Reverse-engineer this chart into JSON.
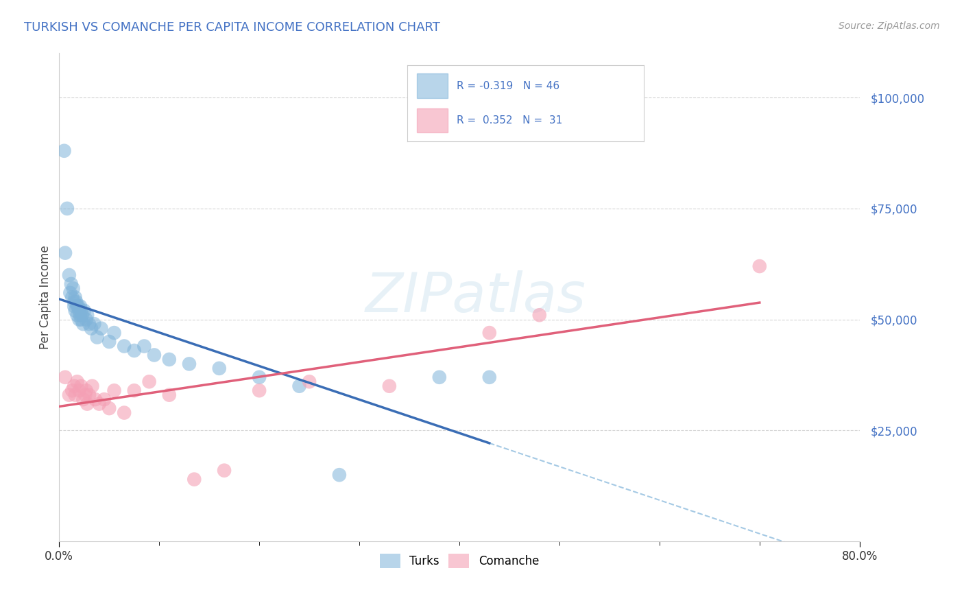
{
  "title": "TURKISH VS COMANCHE PER CAPITA INCOME CORRELATION CHART",
  "title_color": "#4472c4",
  "source_text": "Source: ZipAtlas.com",
  "ylabel": "Per Capita Income",
  "xlim": [
    0.0,
    0.8
  ],
  "ylim": [
    0,
    110000
  ],
  "yticks": [
    25000,
    50000,
    75000,
    100000
  ],
  "ytick_labels": [
    "$25,000",
    "$50,000",
    "$75,000",
    "$100,000"
  ],
  "xtick_left_label": "0.0%",
  "xtick_right_label": "80.0%",
  "turks_color": "#7fb3d9",
  "comanche_color": "#f4a0b5",
  "turks_line_color": "#3a6db5",
  "comanche_line_color": "#e0607a",
  "dashed_line_color": "#7fb3d9",
  "background_color": "#ffffff",
  "grid_color": "#cccccc",
  "turks_x": [
    0.005,
    0.006,
    0.008,
    0.01,
    0.011,
    0.012,
    0.013,
    0.014,
    0.015,
    0.015,
    0.016,
    0.016,
    0.017,
    0.018,
    0.018,
    0.019,
    0.02,
    0.02,
    0.021,
    0.021,
    0.022,
    0.022,
    0.023,
    0.024,
    0.025,
    0.027,
    0.028,
    0.03,
    0.032,
    0.035,
    0.038,
    0.042,
    0.05,
    0.055,
    0.065,
    0.075,
    0.085,
    0.095,
    0.11,
    0.13,
    0.16,
    0.2,
    0.24,
    0.28,
    0.38,
    0.43
  ],
  "turks_y": [
    88000,
    65000,
    75000,
    60000,
    56000,
    58000,
    55000,
    57000,
    54000,
    53000,
    55000,
    52000,
    54000,
    53000,
    51000,
    53000,
    52000,
    50000,
    53000,
    51000,
    52000,
    50000,
    51000,
    49000,
    52000,
    50000,
    51000,
    49000,
    48000,
    49000,
    46000,
    48000,
    45000,
    47000,
    44000,
    43000,
    44000,
    42000,
    41000,
    40000,
    39000,
    37000,
    35000,
    15000,
    37000,
    37000
  ],
  "comanche_x": [
    0.006,
    0.01,
    0.013,
    0.015,
    0.016,
    0.018,
    0.02,
    0.022,
    0.024,
    0.026,
    0.027,
    0.028,
    0.03,
    0.033,
    0.036,
    0.04,
    0.045,
    0.05,
    0.055,
    0.065,
    0.075,
    0.09,
    0.11,
    0.135,
    0.165,
    0.2,
    0.25,
    0.33,
    0.43,
    0.48,
    0.7
  ],
  "comanche_y": [
    37000,
    33000,
    34000,
    35000,
    33000,
    36000,
    34000,
    35000,
    32000,
    33000,
    34000,
    31000,
    33000,
    35000,
    32000,
    31000,
    32000,
    30000,
    34000,
    29000,
    34000,
    36000,
    33000,
    14000,
    16000,
    34000,
    36000,
    35000,
    47000,
    51000,
    62000
  ],
  "legend_turks_label": "R = -0.319   N = 46",
  "legend_comanche_label": "R =  0.352   N =  31"
}
